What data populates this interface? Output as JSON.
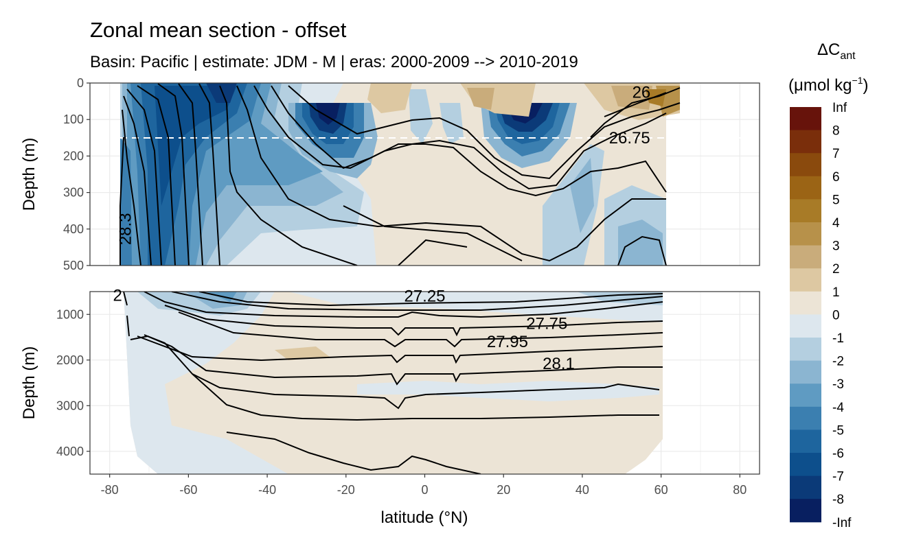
{
  "chart_data": {
    "type": "heatmap",
    "title": "Zonal mean section - offset",
    "subtitle": "Basin: Pacific | estimate: JDM - M | eras: 2000-2009 --> 2010-2019",
    "xlabel": "latitude (°N)",
    "x_ticks": [
      "-80",
      "-60",
      "-40",
      "-20",
      "0",
      "20",
      "40",
      "60",
      "80"
    ],
    "xlim": [
      -85,
      85
    ],
    "panels": [
      {
        "name": "upper",
        "ylabel": "Depth (m)",
        "ylim": [
          0,
          500
        ],
        "y_ticks": [
          "0",
          "100",
          "200",
          "300",
          "400",
          "500"
        ],
        "reference_line_depth": 150
      },
      {
        "name": "lower",
        "ylabel": "Depth (m)",
        "ylim": [
          500,
          4500
        ],
        "y_ticks": [
          "1000",
          "2000",
          "3000",
          "4000"
        ]
      }
    ],
    "contour_labels": [
      {
        "panel": 0,
        "text": "26",
        "lat": 55,
        "depth": 25
      },
      {
        "panel": 0,
        "text": "26.75",
        "lat": 52,
        "depth": 150
      },
      {
        "panel": 0,
        "text": "28.3",
        "lat": -76,
        "depth": 400
      },
      {
        "panel": 1,
        "text": "27.25",
        "lat": 0,
        "depth": 600
      },
      {
        "panel": 1,
        "text": "27.75",
        "lat": 31,
        "depth": 1200
      },
      {
        "panel": 1,
        "text": "27.95",
        "lat": 21,
        "depth": 1600
      },
      {
        "panel": 1,
        "text": "28.1",
        "lat": 34,
        "depth": 2080
      },
      {
        "panel": 1,
        "text": "2",
        "lat": -78,
        "depth": 580
      }
    ],
    "legend": {
      "title_main": "ΔC",
      "title_sub": "ant",
      "unit_prefix": "(μmol kg",
      "unit_sup": "−1",
      "unit_suffix": ")",
      "labels": [
        "Inf",
        "8",
        "7",
        "6",
        "5",
        "4",
        "3",
        "2",
        "1",
        "0",
        "-1",
        "-2",
        "-3",
        "-4",
        "-5",
        "-6",
        "-7",
        "-8",
        "-Inf"
      ],
      "colors": [
        "#67130b",
        "#7a2e0b",
        "#8a4a0d",
        "#9b6415",
        "#a87b27",
        "#b7914a",
        "#c9ac7b",
        "#ddc8a2",
        "#ece4d6",
        "#dde7ee",
        "#b4cfe0",
        "#8bb5d1",
        "#5f9bc2",
        "#3b7fb0",
        "#1e659e",
        "#0d4f8c",
        "#0b3a78",
        "#081f60"
      ]
    }
  }
}
